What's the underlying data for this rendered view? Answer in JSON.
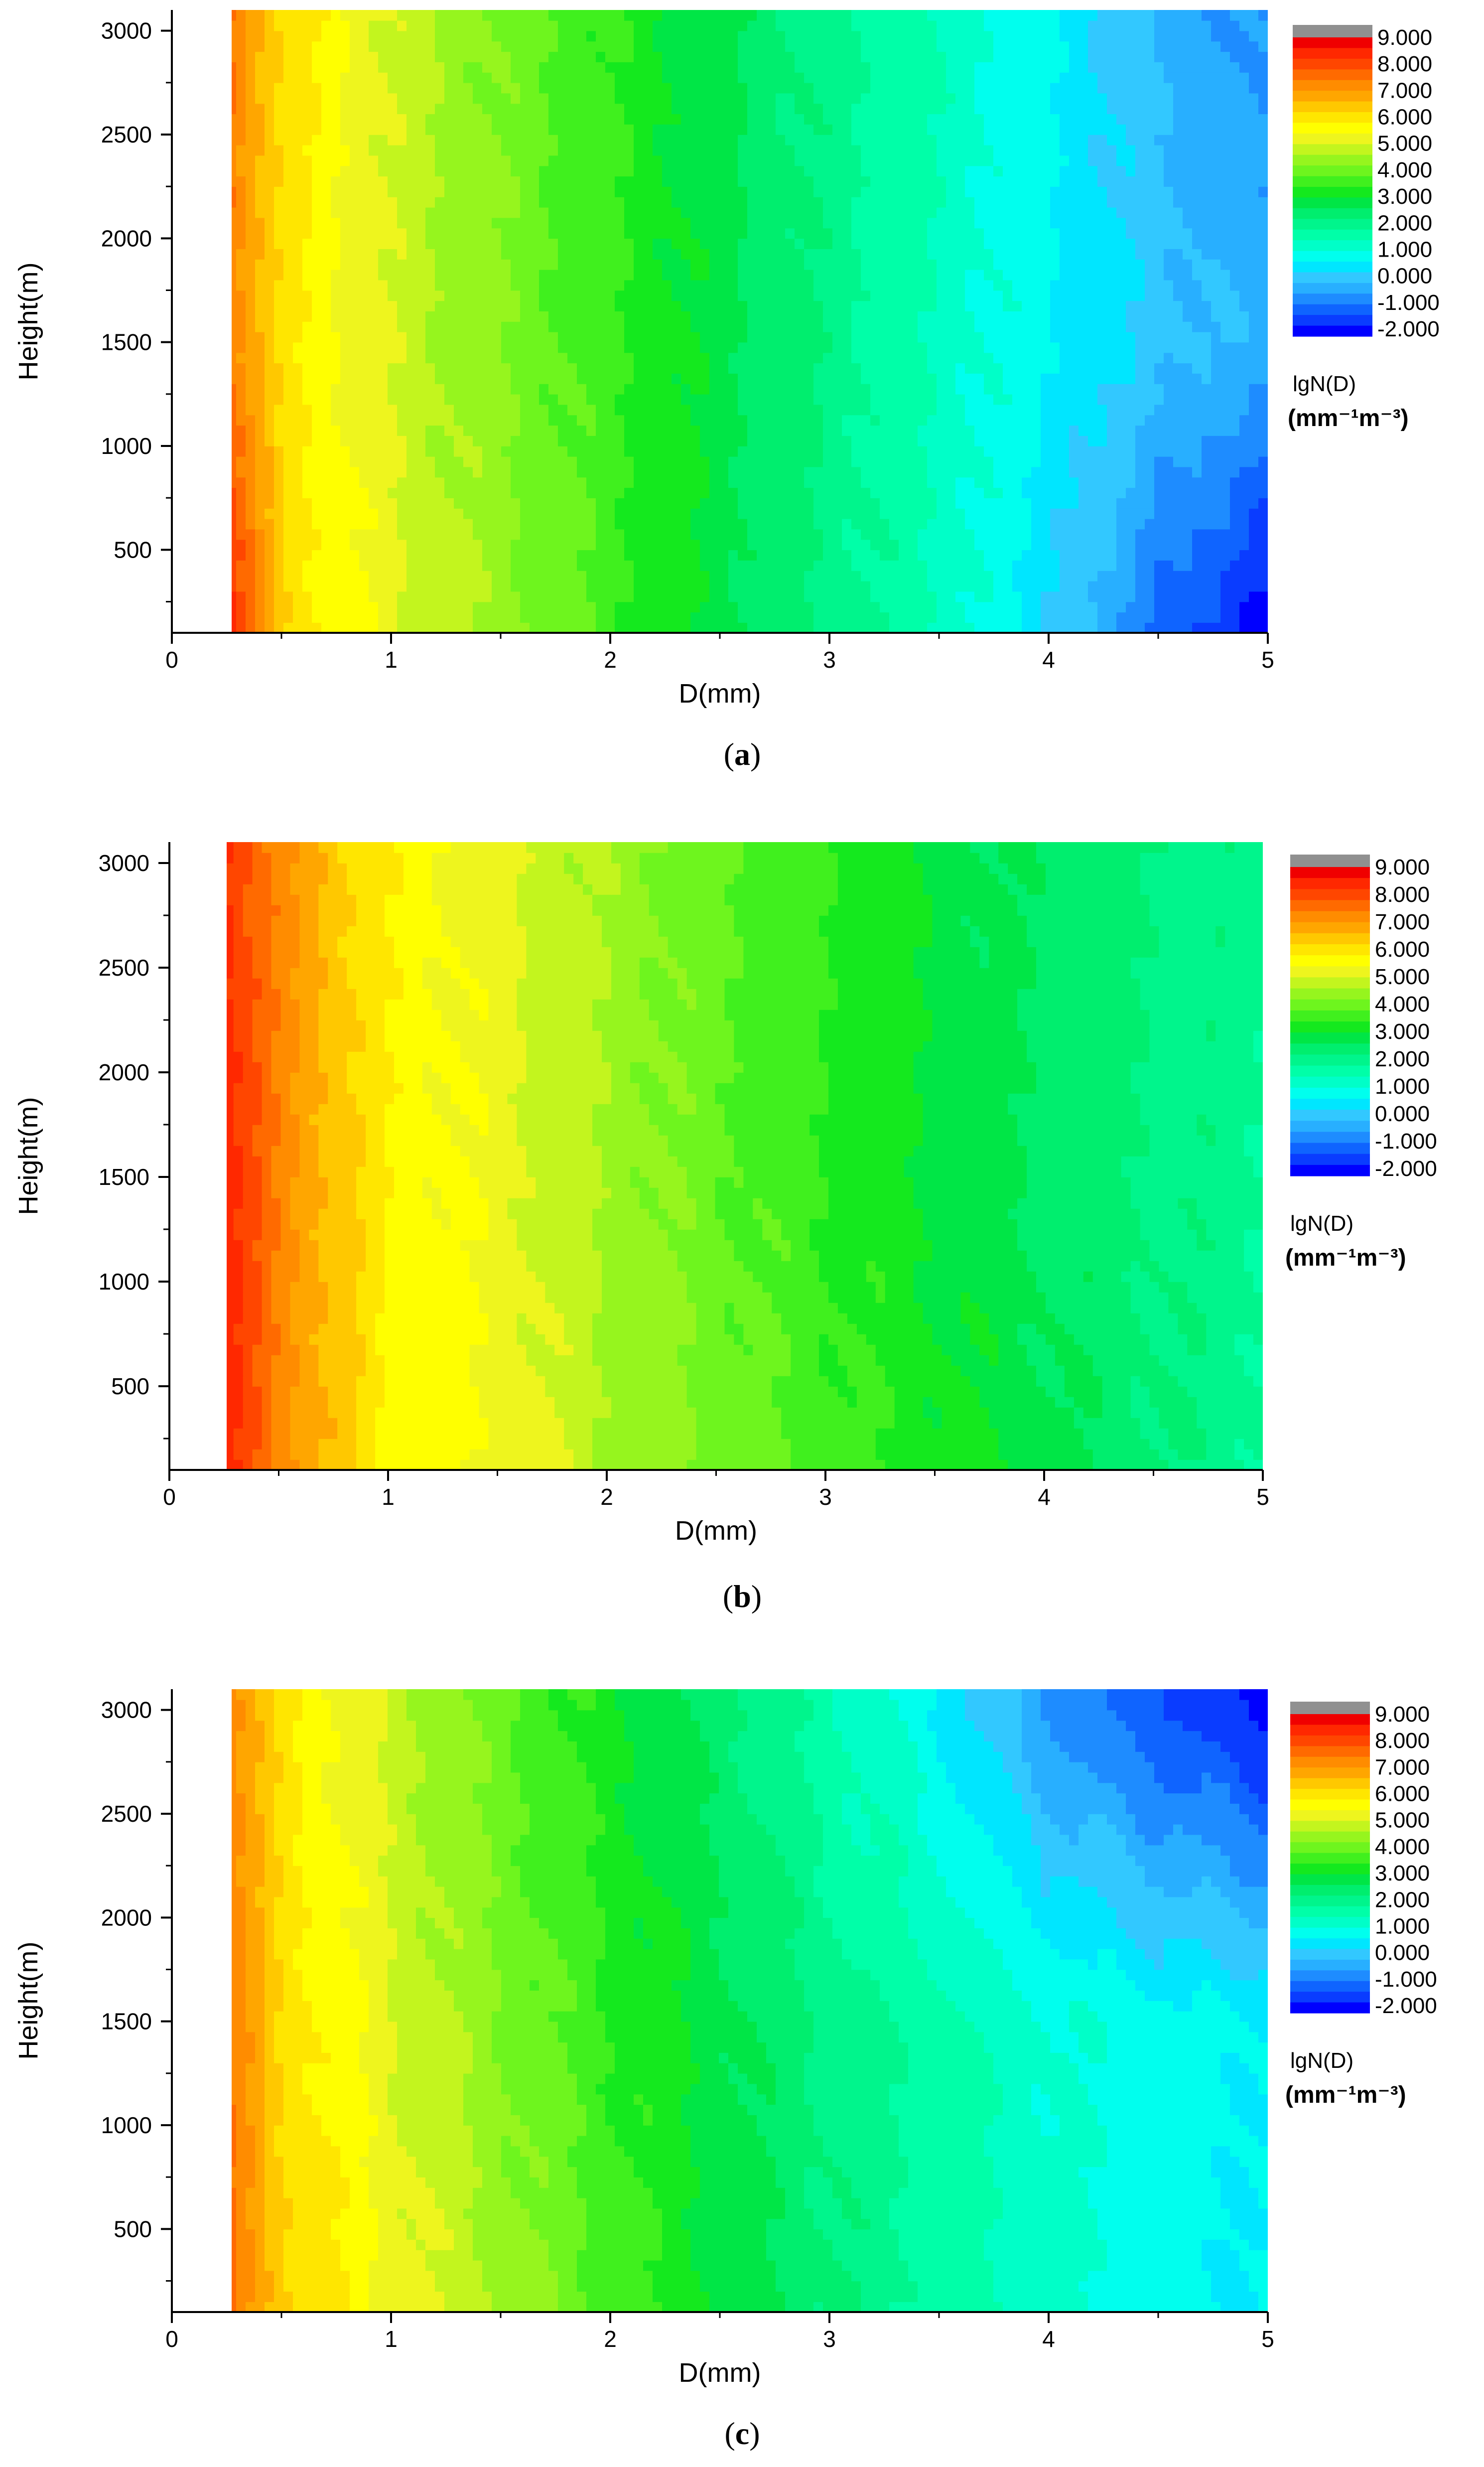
{
  "panels": [
    {
      "caption": "a",
      "xlabel": "D(mm)",
      "ylabel": "Height(m)",
      "x_ticks": [
        "0",
        "1",
        "2",
        "3",
        "4",
        "5"
      ],
      "y_ticks": [
        "500",
        "1000",
        "1500",
        "2000",
        "2500",
        "3000"
      ],
      "legend_title": "lgN(D)",
      "legend_unit": "(mm⁻¹m⁻³)",
      "legend_labels": [
        "9.000",
        "8.000",
        "7.000",
        "6.000",
        "5.000",
        "4.000",
        "3.000",
        "2.000",
        "1.000",
        "0.000",
        "-1.000",
        "-2.000"
      ]
    },
    {
      "caption": "b",
      "xlabel": "D(mm)",
      "ylabel": "Height(m)",
      "x_ticks": [
        "0",
        "1",
        "2",
        "3",
        "4",
        "5"
      ],
      "y_ticks": [
        "500",
        "1000",
        "1500",
        "2000",
        "2500",
        "3000"
      ],
      "legend_title": "lgN(D)",
      "legend_unit": "(mm⁻¹m⁻³)",
      "legend_labels": [
        "9.000",
        "8.000",
        "7.000",
        "6.000",
        "5.000",
        "4.000",
        "3.000",
        "2.000",
        "1.000",
        "0.000",
        "-1.000",
        "-2.000"
      ]
    },
    {
      "caption": "c",
      "xlabel": "D(mm)",
      "ylabel": "Height(m)",
      "x_ticks": [
        "0",
        "1",
        "2",
        "3",
        "4",
        "5"
      ],
      "y_ticks": [
        "500",
        "1000",
        "1500",
        "2000",
        "2500",
        "3000"
      ],
      "legend_title": "lgN(D)",
      "legend_unit": "(mm⁻¹m⁻³)",
      "legend_labels": [
        "9.000",
        "8.000",
        "7.000",
        "6.000",
        "5.000",
        "4.000",
        "3.000",
        "2.000",
        "1.000",
        "0.000",
        "-1.000",
        "-2.000"
      ]
    }
  ],
  "chart_data": [
    {
      "type": "heatmap",
      "panel": "a",
      "xlabel": "D(mm)",
      "ylabel": "Height(m)",
      "xlim": [
        0,
        5
      ],
      "ylim": [
        100,
        3100
      ],
      "data_start_x": 0.25,
      "value_label": "lgN(D) (mm^-1 m^-3)",
      "levels": [
        -2.0,
        9.0
      ],
      "profile_x": [
        0.25,
        0.5,
        1.0,
        1.5,
        2.0,
        2.5,
        3.0,
        3.5,
        4.0,
        4.5,
        5.0
      ],
      "profile_y": [
        150,
        1500,
        3000
      ],
      "values": [
        [
          8.6,
          6.3,
          5.2,
          4.5,
          3.7,
          2.9,
          2.2,
          1.5,
          0.4,
          -0.9,
          -1.8
        ],
        [
          7.5,
          6.0,
          5.0,
          4.3,
          3.6,
          2.9,
          2.2,
          1.4,
          0.8,
          0.2,
          -0.2
        ],
        [
          7.6,
          6.2,
          5.0,
          4.2,
          3.5,
          2.8,
          2.1,
          1.5,
          0.8,
          -0.1,
          -0.6
        ]
      ]
    },
    {
      "type": "heatmap",
      "panel": "b",
      "xlabel": "D(mm)",
      "ylabel": "Height(m)",
      "xlim": [
        0,
        5
      ],
      "ylim": [
        100,
        3100
      ],
      "data_start_x": 0.25,
      "value_label": "lgN(D) (mm^-1 m^-3)",
      "levels": [
        -2.0,
        9.0
      ],
      "profile_x": [
        0.25,
        0.5,
        1.0,
        1.5,
        2.0,
        2.5,
        3.0,
        3.5,
        4.0,
        4.5,
        5.0
      ],
      "profile_y": [
        150,
        1500,
        3000
      ],
      "values": [
        [
          8.5,
          7.3,
          5.7,
          5.4,
          4.7,
          4.2,
          3.7,
          3.3,
          2.9,
          2.4,
          2.0
        ],
        [
          8.6,
          7.3,
          5.8,
          5.3,
          4.6,
          4.0,
          3.5,
          3.0,
          2.6,
          2.3,
          2.0
        ],
        [
          8.4,
          7.2,
          5.8,
          5.2,
          4.6,
          4.0,
          3.5,
          3.0,
          2.6,
          2.3,
          2.1
        ]
      ]
    },
    {
      "type": "heatmap",
      "panel": "c",
      "xlabel": "D(mm)",
      "ylabel": "Height(m)",
      "xlim": [
        0,
        5
      ],
      "ylim": [
        100,
        3100
      ],
      "data_start_x": 0.25,
      "value_label": "lgN(D) (mm^-1 m^-3)",
      "levels": [
        -2.0,
        9.0
      ],
      "profile_x": [
        0.25,
        0.5,
        1.0,
        1.5,
        2.0,
        2.5,
        3.0,
        3.5,
        4.0,
        4.5,
        5.0
      ],
      "profile_y": [
        150,
        1500,
        3000
      ],
      "values": [
        [
          7.6,
          6.4,
          5.4,
          4.6,
          3.8,
          3.0,
          2.4,
          1.8,
          1.3,
          0.9,
          0.7
        ],
        [
          7.4,
          6.2,
          5.1,
          4.3,
          3.5,
          2.9,
          2.2,
          1.7,
          1.2,
          0.9,
          0.8
        ],
        [
          7.4,
          6.0,
          4.9,
          4.0,
          3.2,
          2.5,
          1.6,
          0.7,
          -0.5,
          -1.2,
          -1.8
        ]
      ]
    }
  ]
}
